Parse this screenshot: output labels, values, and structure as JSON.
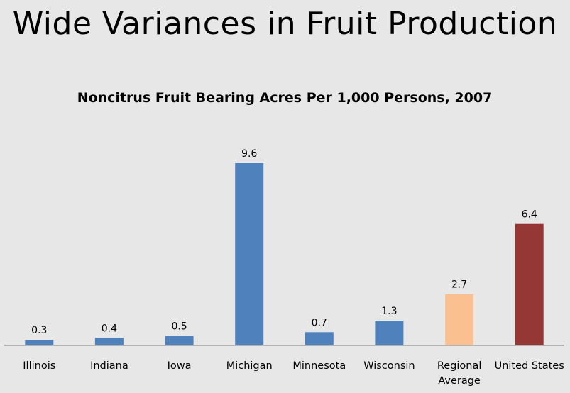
{
  "slide": {
    "title": "Wide Variances in Fruit Production"
  },
  "chart_data": {
    "type": "bar",
    "title": "Noncitrus Fruit Bearing Acres Per 1,000 Persons, 2007",
    "xlabel": "",
    "ylabel": "",
    "categories": [
      [
        "Illinois"
      ],
      [
        "Indiana"
      ],
      [
        "Iowa"
      ],
      [
        "Michigan"
      ],
      [
        "Minnesota"
      ],
      [
        "Wisconsin"
      ],
      [
        "Regional",
        "Average"
      ],
      [
        "United States"
      ]
    ],
    "values": [
      0.3,
      0.4,
      0.5,
      9.6,
      0.7,
      1.3,
      2.7,
      6.4
    ],
    "value_labels": [
      "0.3",
      "0.4",
      "0.5",
      "9.6",
      "0.7",
      "1.3",
      "2.7",
      "6.4"
    ],
    "colors": [
      "#4f81bd",
      "#4f81bd",
      "#4f81bd",
      "#4f81bd",
      "#4f81bd",
      "#4f81bd",
      "#fac090",
      "#953735"
    ],
    "ylim": [
      0,
      9.6
    ],
    "axis_line_color": "#7f7f7f",
    "grid": false,
    "legend": "none"
  }
}
